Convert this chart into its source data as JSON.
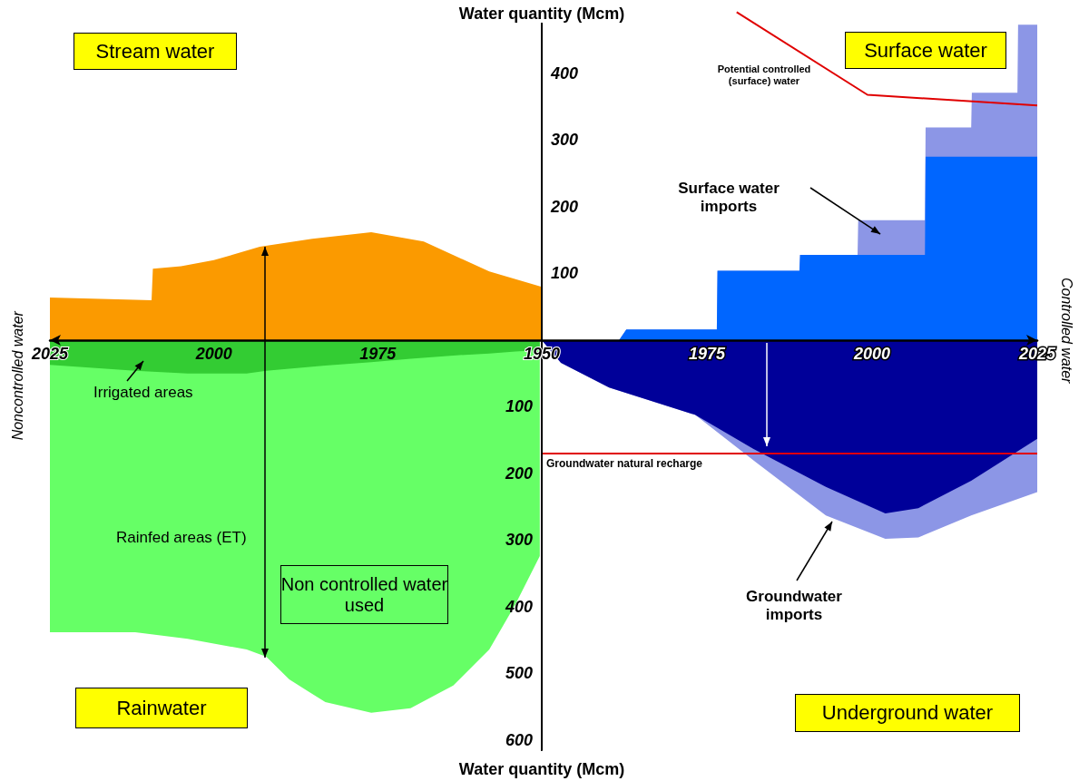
{
  "chart_data": [
    {
      "type": "area",
      "xlim": [
        2025,
        1950
      ],
      "xticks": [
        2025,
        2000,
        1975
      ],
      "ylim": [
        -615,
        500
      ],
      "yticks": [
        {
          "value": -100,
          "label": "100"
        },
        {
          "value": -200,
          "label": "200"
        },
        {
          "value": -300,
          "label": "300"
        },
        {
          "value": -400,
          "label": "400"
        },
        {
          "value": -500,
          "label": "500"
        },
        {
          "value": -600,
          "label": "600"
        }
      ],
      "annotations": [
        "Stream water",
        "Rainwater",
        "Non controlled water used",
        "Noncontrolled water",
        "Water quantity (Mcm)"
      ],
      "series": [
        {
          "color": "#fb9a00",
          "x": [
            2025,
            2009.5,
            2009.3,
            2005,
            2000,
            1993,
            1985,
            1976,
            1968,
            1958,
            1950
          ],
          "values": [
            64,
            60,
            107,
            111,
            120,
            140,
            152,
            162,
            148,
            103,
            80
          ]
        },
        {
          "name": "Rainfed areas (ET)",
          "color": "#66ff66",
          "x": [
            2025,
            2012,
            2004,
            1995,
            1992,
            1988.5,
            1983,
            1976,
            1970,
            1963.5,
            1958,
            1954,
            1950.3
          ],
          "values": [
            -438,
            -438,
            -448,
            -464,
            -475,
            -509,
            -543,
            -559,
            -552,
            -518,
            -464,
            -396,
            -324
          ]
        },
        {
          "name": "Irrigated areas",
          "color": "#33cc33",
          "x": [
            2025,
            2012,
            2004,
            1995,
            1992,
            1988.5,
            1983,
            1976,
            1970,
            1963.5,
            1958,
            1954,
            1950.3
          ],
          "values": [
            -37,
            -46,
            -50,
            -50,
            -46,
            -43,
            -38,
            -33,
            -28,
            -23,
            -20,
            -17,
            -15
          ]
        }
      ]
    },
    {
      "type": "area",
      "ylabel": "Water quantity (Mcm)",
      "xlim": [
        1950,
        2025
      ],
      "xticks": [
        1950,
        1975,
        2000,
        2025
      ],
      "ylim": [
        -615,
        500
      ],
      "yticks": [
        100,
        200,
        300,
        400
      ],
      "annotations": [
        "Surface water",
        "Underground water",
        "Controlled water"
      ],
      "ref_lines": [
        {
          "axis": "y",
          "value": -170,
          "label": "Groundwater natural recharge",
          "color": "#e00000"
        }
      ],
      "series": [
        {
          "name": "Surface water imports",
          "color": "#8c96e6",
          "x": [
            1950,
            1961.7,
            1962.8,
            1976.5,
            1976.6,
            1989,
            1989.1,
            1997.8,
            1997.9,
            2008,
            2008.1,
            2015,
            2015.1,
            2022,
            2022.1,
            2025
          ],
          "values": [
            0,
            0,
            16,
            16,
            104,
            104,
            128,
            128,
            180,
            180,
            319,
            319,
            371,
            371,
            473,
            473
          ]
        },
        {
          "color": "#0066ff",
          "x": [
            1950,
            1961.7,
            1962.8,
            1976.5,
            1976.6,
            1989,
            1989.1,
            1997.8,
            1997.9,
            2008,
            2008.1,
            2015,
            2015.1,
            2022,
            2022.1,
            2025
          ],
          "values": [
            0,
            0,
            16,
            16,
            104,
            104,
            128,
            128,
            128,
            128,
            275,
            275,
            275,
            275,
            275,
            275
          ]
        },
        {
          "name": "Groundwater imports",
          "color": "#8c96e6",
          "x": [
            1950,
            1952.9,
            1960.2,
            1973.2,
            1982,
            1993,
            2002,
            2007,
            2015,
            2025
          ],
          "values": [
            0,
            -34,
            -71,
            -112,
            -180,
            -263,
            -298,
            -296,
            -263,
            -228
          ]
        },
        {
          "color": "#000099",
          "x": [
            1950,
            1952.9,
            1960.2,
            1973.2,
            1982,
            1993,
            2002,
            2007,
            2015,
            2025
          ],
          "values": [
            0,
            -34,
            -71,
            -112,
            -163,
            -220,
            -260,
            -252,
            -211,
            -148
          ]
        },
        {
          "name": "Potential controlled (surface) water",
          "type": "line",
          "color": "#e00000",
          "x": [
            1979.5,
            1999.3,
            2025
          ],
          "values": [
            492,
            368,
            352
          ]
        }
      ]
    }
  ]
}
